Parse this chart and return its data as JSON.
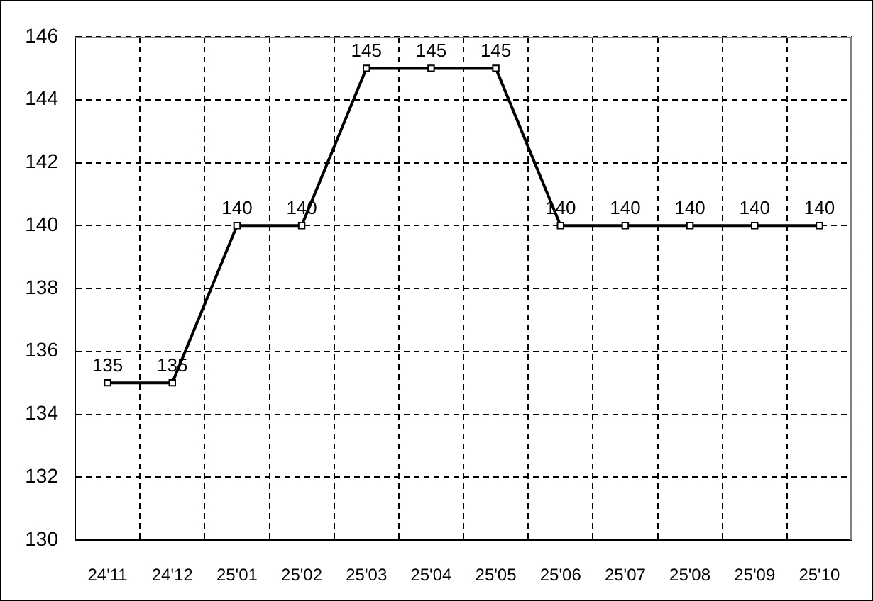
{
  "chart_data": {
    "type": "line",
    "categories": [
      "24'11",
      "24'12",
      "25'01",
      "25'02",
      "25'03",
      "25'04",
      "25'05",
      "25'06",
      "25'07",
      "25'08",
      "25'09",
      "25'10"
    ],
    "series": [
      {
        "color": "#000000",
        "values": [
          135,
          135,
          140,
          140,
          145,
          145,
          145,
          140,
          140,
          140,
          140,
          140
        ]
      }
    ],
    "ylim": [
      130,
      146
    ],
    "yticks": [
      130,
      132,
      134,
      136,
      138,
      140,
      142,
      144,
      146
    ],
    "grid": true,
    "legend": false,
    "marker": "square",
    "line_style": "solid",
    "data_labels": true
  }
}
